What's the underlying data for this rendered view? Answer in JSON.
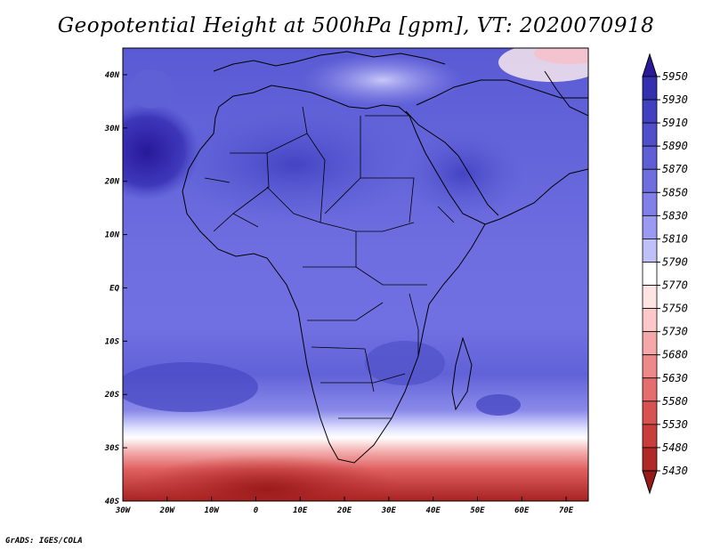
{
  "title": "Geopotential Height at 500hPa [gpm], VT: 2020070918",
  "credit": "GrADS: IGES/COLA",
  "map": {
    "lon_range": [
      -30,
      75
    ],
    "lat_range": [
      -40,
      45
    ],
    "lon_ticks": [
      {
        "lon": -30,
        "label": "30W"
      },
      {
        "lon": -20,
        "label": "20W"
      },
      {
        "lon": -10,
        "label": "10W"
      },
      {
        "lon": 0,
        "label": "0"
      },
      {
        "lon": 10,
        "label": "10E"
      },
      {
        "lon": 20,
        "label": "20E"
      },
      {
        "lon": 30,
        "label": "30E"
      },
      {
        "lon": 40,
        "label": "40E"
      },
      {
        "lon": 50,
        "label": "50E"
      },
      {
        "lon": 60,
        "label": "60E"
      },
      {
        "lon": 70,
        "label": "70E"
      }
    ],
    "lat_ticks": [
      {
        "lat": 40,
        "label": "40N"
      },
      {
        "lat": 30,
        "label": "30N"
      },
      {
        "lat": 20,
        "label": "20N"
      },
      {
        "lat": 10,
        "label": "10N"
      },
      {
        "lat": 0,
        "label": "EQ"
      },
      {
        "lat": -10,
        "label": "10S"
      },
      {
        "lat": -20,
        "label": "20S"
      },
      {
        "lat": -30,
        "label": "30S"
      },
      {
        "lat": -40,
        "label": "40S"
      }
    ]
  },
  "colorbar": {
    "levels": [
      "5950",
      "5930",
      "5910",
      "5890",
      "5870",
      "5850",
      "5830",
      "5810",
      "5790",
      "5770",
      "5750",
      "5730",
      "5680",
      "5630",
      "5580",
      "5530",
      "5480",
      "5430"
    ],
    "colors": [
      "#2a1a9a",
      "#3330b0",
      "#4040c0",
      "#4f4fcc",
      "#5e5ed6",
      "#6e6edf",
      "#8080e8",
      "#9a9af0",
      "#c0c0f8",
      "#ffffff",
      "#ffe4e4",
      "#fcc8c8",
      "#f4a8a8",
      "#ec8a8a",
      "#e46e6e",
      "#d85252",
      "#c83c3c",
      "#b02828",
      "#961a1a"
    ]
  }
}
